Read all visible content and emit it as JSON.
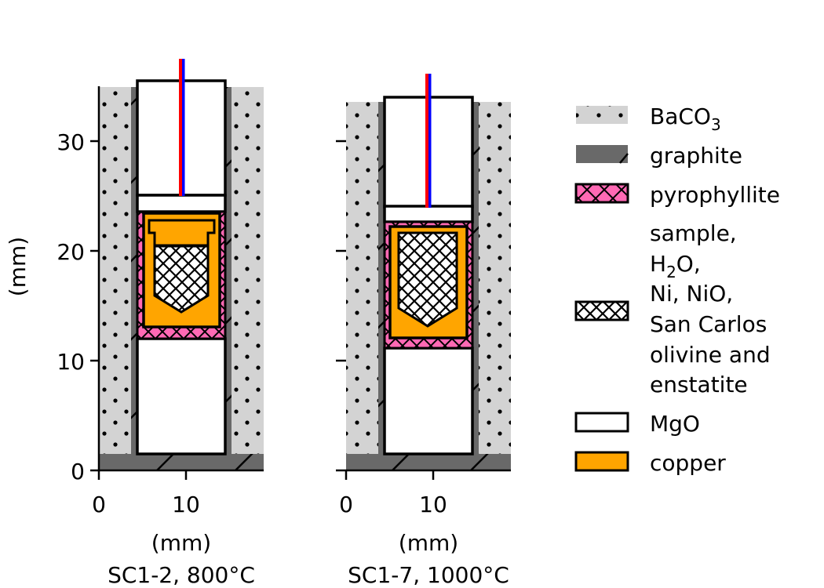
{
  "y_axis": {
    "label": "(mm)",
    "ticks": [
      "0",
      "10",
      "20",
      "30"
    ]
  },
  "panels": [
    {
      "x_ticks": [
        "0",
        "10"
      ],
      "x_unit": "(mm)",
      "caption": "SC1-2, 800°C"
    },
    {
      "x_ticks": [
        "0",
        "10"
      ],
      "x_unit": "(mm)",
      "caption": "SC1-7, 1000°C"
    }
  ],
  "legend": {
    "baco3": {
      "base": "BaCO",
      "sub": "3"
    },
    "graphite": "graphite",
    "pyrophyllite": "pyrophyllite",
    "sample": {
      "line1": "sample,",
      "h2o_base": "H",
      "h2o_sub": "2",
      "h2o_tail": "O,",
      "line3": "Ni, NiO,",
      "line4": "San Carlos",
      "line5": "olivine and",
      "line6": "enstatite"
    },
    "mgo": "MgO",
    "copper": "copper"
  },
  "colors": {
    "baco3": "#d3d3d3",
    "graphite": "#696969",
    "pyrophyllite": "#ff69b4",
    "copper": "#ffa500",
    "mgo": "#ffffff",
    "thermocouple_a": "#ff0000",
    "thermocouple_b": "#0000ff"
  }
}
